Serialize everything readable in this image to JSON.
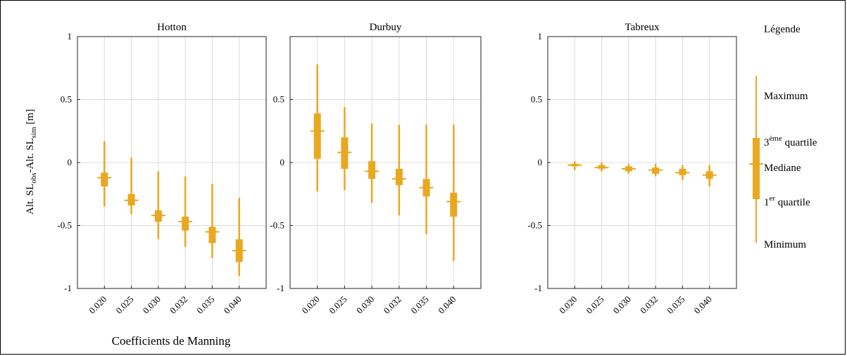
{
  "colors": {
    "box": "#E8A820",
    "grid": "#dcdcdc",
    "axis": "#222222"
  },
  "ylabel": {
    "main1": "Alt. SL",
    "sub1": "obs",
    "mid": "-Alt. SL",
    "sub2": "sim",
    "unit": " [m]"
  },
  "xlabel": "Coefficients de Manning",
  "legend": {
    "title": "Légende",
    "maximum": "Maximum",
    "q3_pre": "3",
    "q3_sup": "ème",
    "q3_post": " quartile",
    "median": "Mediane",
    "q1_pre": "1",
    "q1_sup": "er",
    "q1_post": " quartile",
    "minimum": "Minimum"
  },
  "chart_data": [
    {
      "type": "box",
      "title": "Hotton",
      "ylim": [
        -1,
        1
      ],
      "yticks": [
        "1",
        "0.5",
        "0",
        "-0.5",
        "-1"
      ],
      "grid": true,
      "categories": [
        "0.020",
        "0.025",
        "0.030",
        "0.032",
        "0.035",
        "0.040"
      ],
      "boxes": [
        {
          "min": -0.35,
          "q1": -0.19,
          "median": -0.12,
          "q3": -0.08,
          "max": 0.17
        },
        {
          "min": -0.41,
          "q1": -0.34,
          "median": -0.3,
          "q3": -0.25,
          "max": 0.04
        },
        {
          "min": -0.61,
          "q1": -0.47,
          "median": -0.42,
          "q3": -0.38,
          "max": -0.07
        },
        {
          "min": -0.67,
          "q1": -0.54,
          "median": -0.47,
          "q3": -0.43,
          "max": -0.11
        },
        {
          "min": -0.76,
          "q1": -0.64,
          "median": -0.55,
          "q3": -0.51,
          "max": -0.17
        },
        {
          "min": -0.9,
          "q1": -0.79,
          "median": -0.7,
          "q3": -0.61,
          "max": -0.28
        }
      ]
    },
    {
      "type": "box",
      "title": "Durbuy",
      "ylim": [
        -1,
        1
      ],
      "yticks": [
        "0.5",
        "0",
        "-0.5",
        "-1"
      ],
      "grid": true,
      "categories": [
        "0.020",
        "0.025",
        "0.030",
        "0.032",
        "0.035",
        "0.040"
      ],
      "boxes": [
        {
          "min": -0.23,
          "q1": 0.03,
          "median": 0.25,
          "q3": 0.39,
          "max": 0.78
        },
        {
          "min": -0.22,
          "q1": -0.05,
          "median": 0.08,
          "q3": 0.2,
          "max": 0.44
        },
        {
          "min": -0.32,
          "q1": -0.13,
          "median": -0.07,
          "q3": 0.01,
          "max": 0.31
        },
        {
          "min": -0.42,
          "q1": -0.18,
          "median": -0.13,
          "q3": -0.05,
          "max": 0.3
        },
        {
          "min": -0.57,
          "q1": -0.27,
          "median": -0.2,
          "q3": -0.13,
          "max": 0.3
        },
        {
          "min": -0.78,
          "q1": -0.43,
          "median": -0.31,
          "q3": -0.24,
          "max": 0.3
        }
      ]
    },
    {
      "type": "box",
      "title": "Tabreux",
      "ylim": [
        -1,
        1
      ],
      "yticks": [
        "1",
        "0.5",
        "0",
        "-0.5",
        "-1"
      ],
      "grid": true,
      "categories": [
        "0.020",
        "0.025",
        "0.030",
        "0.032",
        "0.035",
        "0.040"
      ],
      "boxes": [
        {
          "min": -0.06,
          "q1": -0.03,
          "median": -0.02,
          "q3": -0.01,
          "max": 0.01
        },
        {
          "min": -0.07,
          "q1": -0.05,
          "median": -0.04,
          "q3": -0.02,
          "max": 0.0
        },
        {
          "min": -0.09,
          "q1": -0.07,
          "median": -0.05,
          "q3": -0.03,
          "max": -0.01
        },
        {
          "min": -0.11,
          "q1": -0.09,
          "median": -0.06,
          "q3": -0.04,
          "max": -0.01
        },
        {
          "min": -0.14,
          "q1": -0.1,
          "median": -0.08,
          "q3": -0.05,
          "max": -0.02
        },
        {
          "min": -0.19,
          "q1": -0.13,
          "median": -0.1,
          "q3": -0.07,
          "max": -0.02
        }
      ]
    }
  ]
}
